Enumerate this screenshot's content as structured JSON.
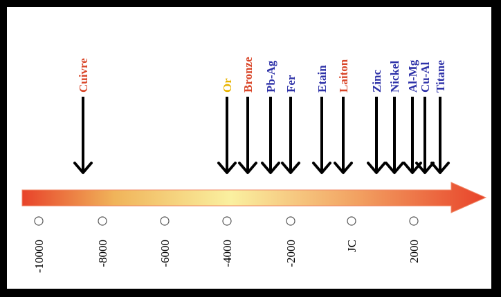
{
  "timeline": {
    "metals": [
      {
        "name": "Cuivre",
        "color": "#d9472a"
      },
      {
        "name": "Or",
        "color": "#e8b400"
      },
      {
        "name": "Bronze",
        "color": "#d9472a"
      },
      {
        "name": "Pb-Ag",
        "color": "#2e32a8"
      },
      {
        "name": "Fer",
        "color": "#2e32a8"
      },
      {
        "name": "Etain",
        "color": "#2e32a8"
      },
      {
        "name": "Laiton",
        "color": "#d9472a"
      },
      {
        "name": "Zinc",
        "color": "#2e32a8"
      },
      {
        "name": "Nickel",
        "color": "#2e32a8"
      },
      {
        "name": "Al-Mg",
        "color": "#2e32a8"
      },
      {
        "name": "Cu-Al",
        "color": "#2e32a8"
      },
      {
        "name": "Titane",
        "color": "#2e32a8"
      }
    ],
    "ticks": [
      "-10000",
      "-8000",
      "-6000",
      "-4000",
      "-2000",
      "JC",
      "2000"
    ],
    "axis_gradient": [
      "#e8432a",
      "#f0b45a",
      "#faf0a0",
      "#f2a262",
      "#e8432a"
    ]
  }
}
